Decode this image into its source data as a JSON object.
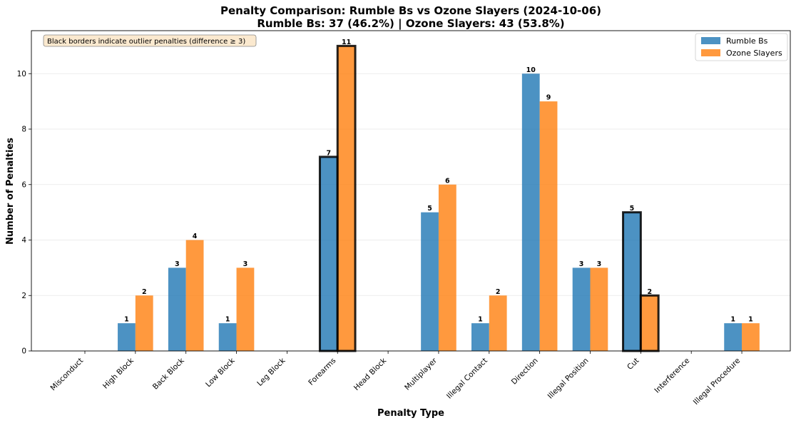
{
  "chart_data": {
    "type": "bar",
    "title_line1": "Penalty Comparison: Rumble Bs vs Ozone Slayers (2024-10-06)",
    "title_line2": "Rumble Bs: 37 (46.2%) | Ozone Slayers: 43 (53.8%)",
    "xlabel": "Penalty Type",
    "ylabel": "Number of Penalties",
    "annotation": "Black borders indicate outlier penalties (difference ≥ 3)",
    "categories": [
      "Misconduct",
      "High Block",
      "Back Block",
      "Low Block",
      "Leg Block",
      "Forearms",
      "Head Block",
      "Multiplayer",
      "Illegal Contact",
      "Direction",
      "Illegal Position",
      "Cut",
      "Interference",
      "Illegal Procedure"
    ],
    "series": [
      {
        "name": "Rumble Bs",
        "color": "#1f77b4",
        "values": [
          0,
          1,
          3,
          1,
          0,
          7,
          0,
          5,
          1,
          10,
          3,
          5,
          0,
          1
        ]
      },
      {
        "name": "Ozone Slayers",
        "color": "#ff7f0e",
        "values": [
          0,
          2,
          4,
          3,
          0,
          11,
          0,
          6,
          2,
          9,
          3,
          2,
          0,
          1
        ]
      }
    ],
    "outliers": [
      "Forearms",
      "Cut"
    ],
    "ylim": [
      0,
      11.55
    ],
    "yticks": [
      0,
      2,
      4,
      6,
      8,
      10
    ],
    "grid": true,
    "legend_position": "top-right"
  }
}
